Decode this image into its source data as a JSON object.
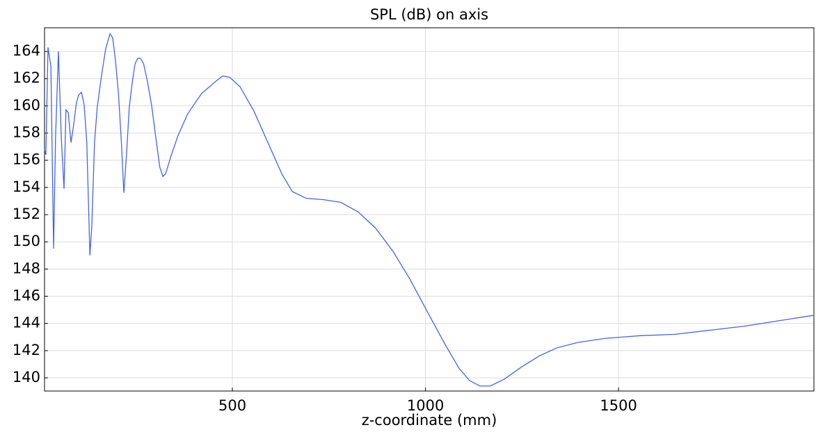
{
  "chart_data": {
    "type": "line",
    "title": "SPL (dB) on axis",
    "xlabel": "z-coordinate (mm)",
    "x": [
      13.5,
      17,
      22.5,
      30,
      37,
      42,
      49.5,
      57,
      64,
      69,
      75,
      82,
      89,
      96,
      102,
      109,
      116,
      123,
      131,
      136,
      143,
      150,
      161,
      172,
      183,
      190,
      197,
      205,
      212,
      219,
      226,
      233,
      241,
      248,
      255,
      262,
      270,
      280,
      291,
      302,
      312,
      320,
      327,
      341,
      359,
      384,
      420,
      457,
      475,
      493,
      520,
      556,
      592,
      628,
      655,
      691,
      736,
      781,
      826,
      871,
      916,
      961,
      1006,
      1052,
      1087,
      1114,
      1141,
      1168,
      1204,
      1249,
      1294,
      1340,
      1394,
      1465,
      1556,
      1646,
      1736,
      1826,
      1916,
      2006
    ],
    "values": [
      156.8,
      156.4,
      164.3,
      162.9,
      149.5,
      157.6,
      164.0,
      157.6,
      153.9,
      159.7,
      159.5,
      157.3,
      158.6,
      160.2,
      160.8,
      161.0,
      160.1,
      157.3,
      149.0,
      151.2,
      157.3,
      159.9,
      162.2,
      164.2,
      165.3,
      165.0,
      163.4,
      160.9,
      157.6,
      153.6,
      156.5,
      159.9,
      161.8,
      163.1,
      163.5,
      163.5,
      163.1,
      161.8,
      160.0,
      157.6,
      155.5,
      154.8,
      155.0,
      156.3,
      157.8,
      159.4,
      160.9,
      161.8,
      162.2,
      162.1,
      161.4,
      159.6,
      157.3,
      155.0,
      153.7,
      153.2,
      153.1,
      152.9,
      152.2,
      151.0,
      149.3,
      147.2,
      144.8,
      142.4,
      140.7,
      139.8,
      139.4,
      139.4,
      139.9,
      140.8,
      141.6,
      142.2,
      142.6,
      142.9,
      143.1,
      143.2,
      143.5,
      143.8,
      144.2,
      144.6
    ],
    "color": "#4463e6",
    "xlim": [
      13.5,
      2006
    ],
    "ylim": [
      139.03,
      165.74
    ],
    "xticks": [
      500,
      1000,
      1500
    ],
    "yticks": [
      140,
      142,
      144,
      146,
      148,
      150,
      152,
      154,
      156,
      158,
      160,
      162,
      164
    ],
    "grid": true
  }
}
